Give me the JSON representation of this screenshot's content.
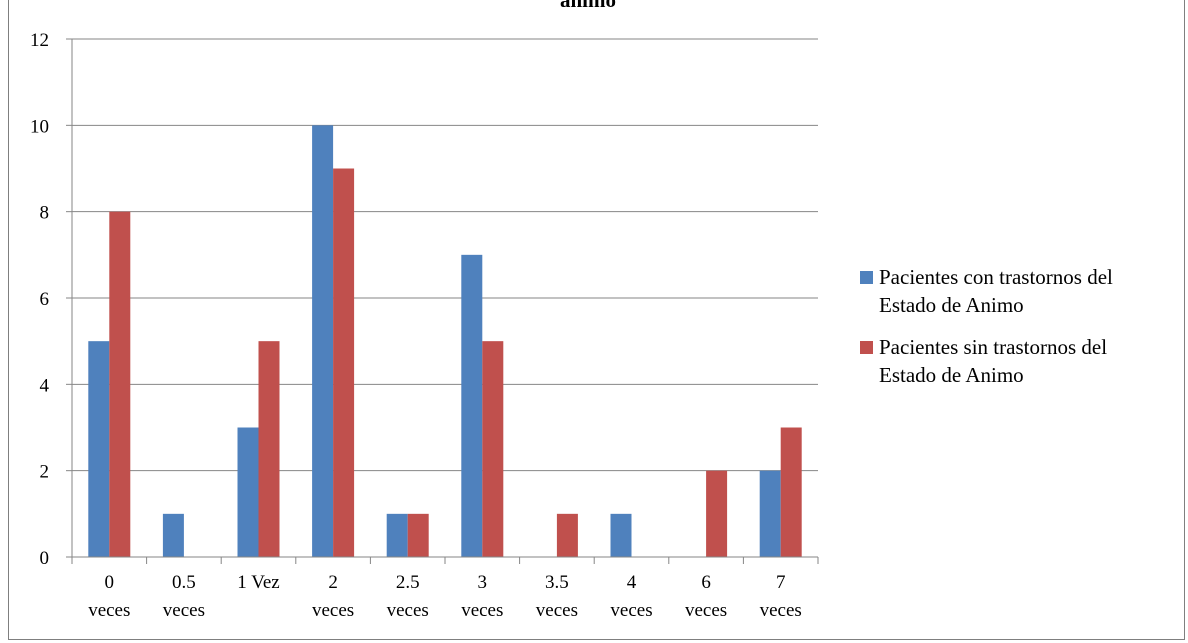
{
  "chart_data": {
    "type": "bar",
    "title": "animo",
    "categories": [
      [
        "0",
        "veces"
      ],
      [
        "0.5",
        "veces"
      ],
      [
        "1 Vez",
        ""
      ],
      [
        "2",
        "veces"
      ],
      [
        "2.5",
        "veces"
      ],
      [
        "3",
        "veces"
      ],
      [
        "3.5",
        "veces"
      ],
      [
        "4",
        "veces"
      ],
      [
        "6",
        "veces"
      ],
      [
        "7",
        "veces"
      ]
    ],
    "series": [
      {
        "name": "Pacientes con trastornos del Estado de Animo",
        "name_lines": [
          "Pacientes con trastornos del",
          "Estado de Animo"
        ],
        "color": "#4F81BD",
        "values": [
          5,
          1,
          3,
          10,
          1,
          7,
          0,
          1,
          0,
          2
        ]
      },
      {
        "name": "Pacientes sin trastornos del Estado de Animo",
        "name_lines": [
          "Pacientes sin trastornos del",
          "Estado de Animo"
        ],
        "color": "#C0504D",
        "values": [
          8,
          0,
          5,
          9,
          1,
          5,
          1,
          0,
          2,
          3
        ]
      }
    ],
    "ylim": [
      0,
      12
    ],
    "yticks": [
      0,
      2,
      4,
      6,
      8,
      10,
      12
    ],
    "grid": true,
    "legend": "right"
  }
}
